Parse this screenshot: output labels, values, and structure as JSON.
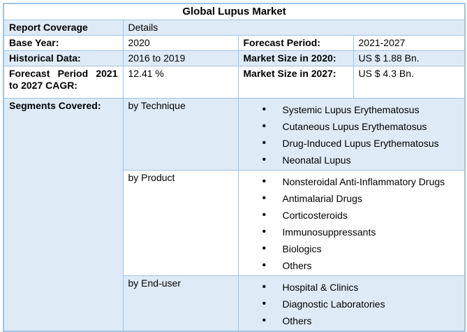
{
  "title": "Global Lupus Market",
  "report": {
    "coverage_label": "Report Coverage",
    "coverage_value": "Details",
    "base_year_label": "Base Year:",
    "base_year_value": "2020",
    "forecast_period_label": "Forecast Period:",
    "forecast_period_value": "2021-2027",
    "historical_data_label": "Historical Data:",
    "historical_data_value": "2016 to 2019",
    "market_size_2020_label": "Market Size in 2020:",
    "market_size_2020_value": "US $ 1.88 Bn.",
    "cagr_label": "Forecast Period 2021 to 2027 CAGR:",
    "cagr_value": "12.41 %",
    "market_size_2027_label": "Market Size in 2027:",
    "market_size_2027_value": "US $ 4.3 Bn.",
    "segments_label": "Segments Covered:"
  },
  "segments": [
    {
      "group": "by Technique",
      "items": [
        "Systemic Lupus Erythematosus",
        "Cutaneous Lupus Erythematosus",
        "Drug-Induced Lupus Erythematosus",
        "Neonatal Lupus"
      ]
    },
    {
      "group": "by Product",
      "items": [
        "Nonsteroidal Anti-Inflammatory Drugs",
        "Antimalarial Drugs",
        "Corticosteroids",
        "Immunosuppressants",
        "Biologics",
        "Others"
      ]
    },
    {
      "group": "by End-user",
      "items": [
        "Hospital & Clinics",
        "Diagnostic Laboratories",
        "Others"
      ]
    }
  ],
  "colors": {
    "row_fill": "#DEEBF7",
    "border": "#9DC3E6",
    "text": "#000000",
    "background": "#FFFFFF"
  }
}
